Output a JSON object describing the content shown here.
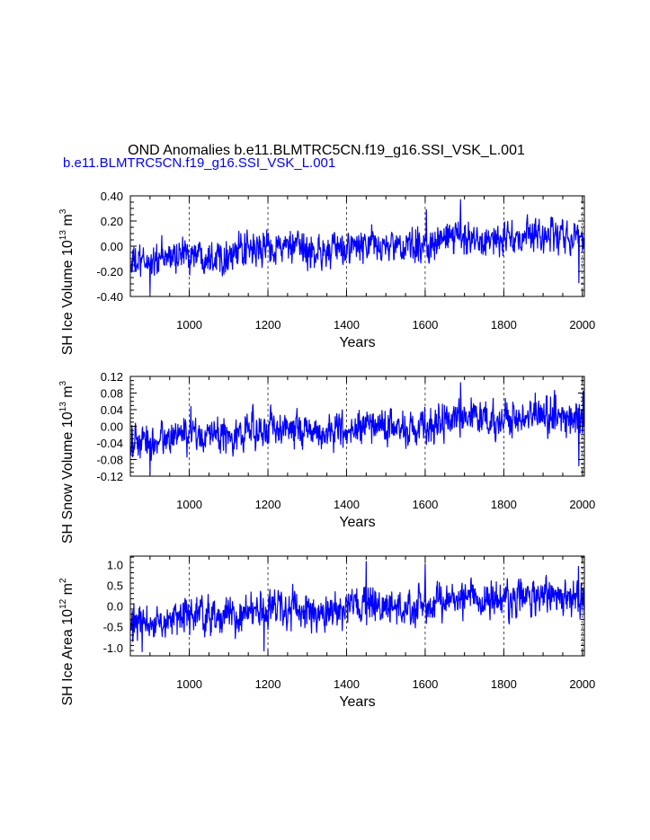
{
  "main_title": "OND Anomalies b.e11.BLMTRC5CN.f19_g16.SSI_VSK_L.001",
  "run_label": "b.e11.BLMTRC5CN.f19_g16.SSI_VSK_L.001",
  "colors": {
    "series": "#0000ff",
    "axis": "#000000",
    "grid": "#000000"
  },
  "chart_data": [
    {
      "type": "line",
      "ylabel_main": "SH Ice Volume 10",
      "ylabel_exp": "13",
      "ylabel_unit": " m",
      "ylabel_unit_exp": "3",
      "xlabel": "Years",
      "xlim": [
        850,
        2005
      ],
      "ylim": [
        -0.4,
        0.4
      ],
      "x_ticks": [
        "1000",
        "1200",
        "1400",
        "1600",
        "1800",
        "2000"
      ],
      "y_ticks": [
        "0.40",
        "0.20",
        "0.00",
        "-0.20",
        "-0.40"
      ],
      "series": [
        {
          "name": "SH Ice Volume",
          "x_start": 850,
          "x_end": 2005,
          "mean_start": -0.1,
          "mean_end": 0.09,
          "amplitude": 0.085,
          "min": -0.37,
          "max": 0.37
        }
      ],
      "events": [
        {
          "year": 900,
          "value": -0.37
        },
        {
          "year": 1690,
          "value": 0.37
        },
        {
          "year": 1603,
          "value": 0.29
        },
        {
          "year": 1991,
          "value": -0.29
        },
        {
          "year": 1860,
          "value": 0.25
        }
      ]
    },
    {
      "type": "line",
      "ylabel_main": "SH Snow Volume 10",
      "ylabel_exp": "13",
      "ylabel_unit": " m",
      "ylabel_unit_exp": "3",
      "xlabel": "Years",
      "xlim": [
        850,
        2005
      ],
      "ylim": [
        -0.12,
        0.12
      ],
      "x_ticks": [
        "1000",
        "1200",
        "1400",
        "1600",
        "1800",
        "2000"
      ],
      "y_ticks": [
        "0.12",
        "0.08",
        "0.04",
        "0.00",
        "-0.04",
        "-0.08",
        "-0.12"
      ],
      "series": [
        {
          "name": "SH Snow Volume",
          "x_start": 850,
          "x_end": 2005,
          "mean_start": -0.03,
          "mean_end": 0.025,
          "amplitude": 0.027,
          "min": -0.115,
          "max": 0.105
        }
      ],
      "events": [
        {
          "year": 900,
          "value": -0.115
        },
        {
          "year": 1690,
          "value": 0.105
        },
        {
          "year": 1991,
          "value": -0.095
        },
        {
          "year": 1880,
          "value": 0.08
        },
        {
          "year": 2002,
          "value": 0.085
        }
      ]
    },
    {
      "type": "line",
      "ylabel_main": "SH Ice Area 10",
      "ylabel_exp": "12",
      "ylabel_unit": " m",
      "ylabel_unit_exp": "2",
      "xlabel": "Years",
      "xlim": [
        850,
        2005
      ],
      "ylim": [
        -1.2,
        1.2
      ],
      "x_ticks": [
        "1000",
        "1200",
        "1400",
        "1600",
        "1800",
        "2000"
      ],
      "y_ticks": [
        "1.0",
        "0.5",
        "0.0",
        "-0.5",
        "-1.0"
      ],
      "series": [
        {
          "name": "SH Ice Area",
          "x_start": 850,
          "x_end": 2005,
          "mean_start": -0.35,
          "mean_end": 0.25,
          "amplitude": 0.27,
          "min": -1.1,
          "max": 1.08
        }
      ],
      "events": [
        {
          "year": 880,
          "value": -1.1
        },
        {
          "year": 1190,
          "value": -1.08
        },
        {
          "year": 1450,
          "value": 1.07
        },
        {
          "year": 1600,
          "value": 1.0
        },
        {
          "year": 1990,
          "value": 0.95
        }
      ]
    }
  ]
}
